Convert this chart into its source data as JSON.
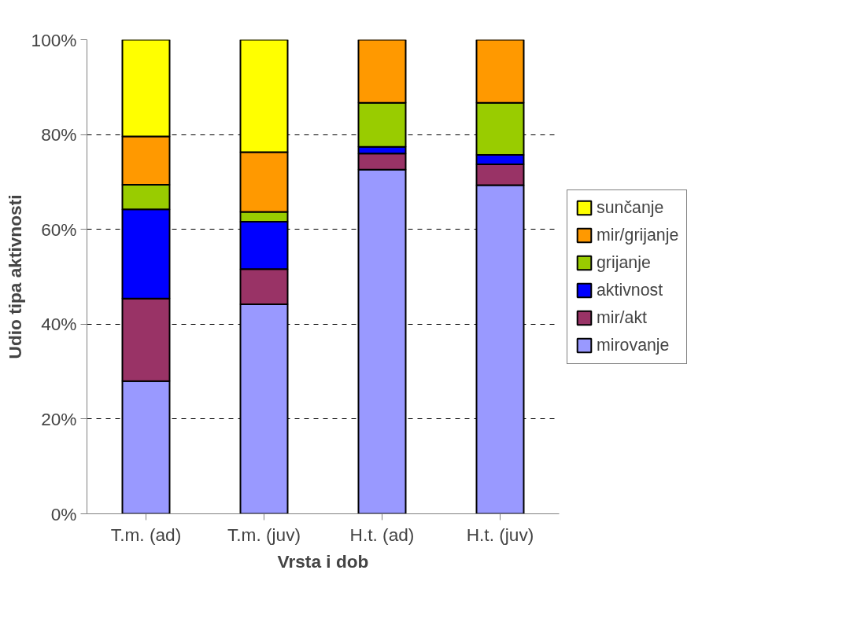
{
  "chart_data": {
    "type": "bar",
    "stacked": true,
    "xlabel": "Vrsta i dob",
    "ylabel": "Udio tipa aktivnosti",
    "categories": [
      "T.m. (ad)",
      "T.m. (juv)",
      "H.t. (ad)",
      "H.t. (juv)"
    ],
    "series": [
      {
        "name": "mirovanje",
        "color": "#9999ff",
        "values": [
          28.0,
          44.2,
          72.6,
          69.3
        ]
      },
      {
        "name": "mir/akt",
        "color": "#993366",
        "values": [
          17.4,
          7.4,
          3.4,
          4.4
        ]
      },
      {
        "name": "aktivnost",
        "color": "#0000ff",
        "values": [
          18.8,
          10.0,
          1.4,
          2.0
        ]
      },
      {
        "name": "grijanje",
        "color": "#99cc00",
        "values": [
          5.2,
          2.1,
          9.3,
          11.0
        ]
      },
      {
        "name": "mir/grijanje",
        "color": "#ff9900",
        "values": [
          10.2,
          12.6,
          13.3,
          13.3
        ]
      },
      {
        "name": "sunčanje",
        "color": "#ffff00",
        "values": [
          20.4,
          23.7,
          0,
          0
        ]
      }
    ],
    "ylim": [
      0,
      100
    ],
    "yticks": [
      {
        "value": 0,
        "label": "0%"
      },
      {
        "value": 20,
        "label": "20%"
      },
      {
        "value": 40,
        "label": "40%"
      },
      {
        "value": 60,
        "label": "60%"
      },
      {
        "value": 80,
        "label": "80%"
      },
      {
        "value": 100,
        "label": "100%"
      }
    ],
    "grid": "y",
    "legend": "right"
  }
}
